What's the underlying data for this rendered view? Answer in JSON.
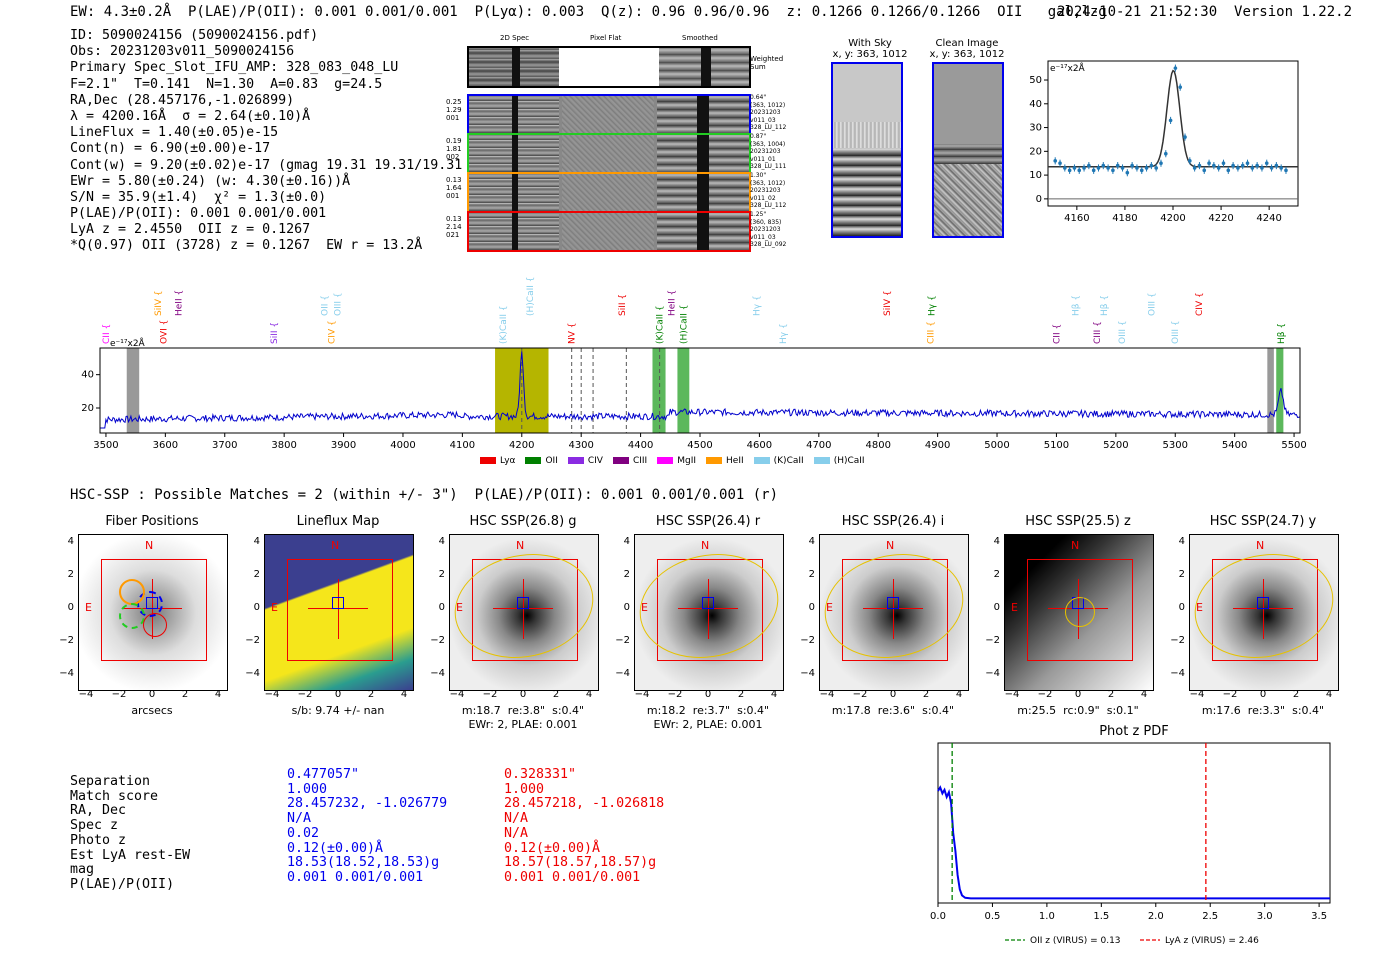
{
  "header": {
    "left": "EW: 4.3±0.2Å  P(LAE)/P(OII): 0.001 0.001/0.001  P(Lyα): 0.003  Q(z): 0.96 0.96/0.96  z: 0.1266 0.1266/0.1266  OII   gal,lzg",
    "timestamp": "2024-10-21 21:52:30",
    "version": "Version 1.22.2"
  },
  "info": [
    "ID: 5090024156 (5090024156.pdf)",
    "Obs: 20231203v011_5090024156",
    "Primary Spec_Slot_IFU_AMP: 328_083_048_LU",
    "F=2.1\"  T=0.141  N=1.30  A=0.83  g=24.5",
    "RA,Dec (28.457176,-1.026899)",
    "λ = 4200.16Å  σ = 2.64(±0.10)Å",
    "LineFlux = 1.40(±0.05)e-15",
    "Cont(n) = 6.90(±0.00)e-17",
    "Cont(w) = 9.20(±0.02)e-17 (gmag 19.31 19.31/19.31 *)",
    "EWr = 5.80(±0.24) (w: 4.30(±0.16))Å",
    "S/N = 35.9(±1.4)  χ² = 1.3(±0.0)",
    "P(LAE)/P(OII): 0.001 0.001/0.001",
    "LyA z = 2.4550  OII z = 0.1267",
    "*Q(0.97) OII (3728) z = 0.1267  EW r = 13.2Å"
  ],
  "cutouts": {
    "col_titles": [
      "2D Spec",
      "Pixel Flat",
      "Smoothed"
    ],
    "weighted_sum": "Weighted Sum",
    "rows": [
      {
        "left": [
          "0.25",
          "1.29",
          "001"
        ],
        "right": [
          "0.64\"",
          "(363, 1012)",
          "20231203",
          "v011_03",
          "328_LU_112"
        ],
        "color": "#0000ee"
      },
      {
        "left": [
          "0.19",
          "1.81",
          "002"
        ],
        "right": [
          "0.87\"",
          "(363, 1004)",
          "20231203",
          "v011_01",
          "328_LU_111"
        ],
        "color": "#22cc22"
      },
      {
        "left": [
          "0.13",
          "1.64",
          "001"
        ],
        "right": [
          "1.30\"",
          "(363, 1012)",
          "20231203",
          "v011_02",
          "328_LU_112"
        ],
        "color": "#ff9900"
      },
      {
        "left": [
          "0.13",
          "2.14",
          "021"
        ],
        "right": [
          "1.25\"",
          "(360, 835)",
          "20231203",
          "v011_03",
          "328_LU_092"
        ],
        "color": "#ee0000"
      }
    ]
  },
  "sky": {
    "with_sky": "With Sky",
    "with_sky_xy": "x, y: 363, 1012",
    "clean": "Clean Image",
    "clean_xy": "x, y: 363, 1012"
  },
  "zoom_chart": {
    "type": "line",
    "ylabel": "e⁻¹⁷x2Å",
    "xticks": [
      "4160",
      "4180",
      "4200",
      "4220",
      "4240"
    ],
    "yticks": [
      "0",
      "10",
      "20",
      "30",
      "40",
      "50"
    ],
    "xlim": [
      4148,
      4252
    ],
    "ylim": [
      -3,
      58
    ],
    "model_baseline": 13.5,
    "model_peak": 54,
    "center": 4200.16,
    "sigma": 2.64,
    "points_x": [
      4151,
      4153,
      4155,
      4157,
      4159,
      4161,
      4163,
      4165,
      4167,
      4169,
      4171,
      4173,
      4175,
      4177,
      4179,
      4181,
      4183,
      4185,
      4187,
      4189,
      4191,
      4193,
      4195,
      4197,
      4199,
      4201,
      4203,
      4205,
      4207,
      4209,
      4211,
      4213,
      4215,
      4217,
      4219,
      4221,
      4223,
      4225,
      4227,
      4229,
      4231,
      4233,
      4235,
      4237,
      4239,
      4241,
      4243,
      4245,
      4247
    ],
    "points_y": [
      16,
      15,
      13,
      12,
      13,
      12,
      13,
      14,
      12,
      13,
      14,
      13,
      12,
      14,
      13,
      11,
      14,
      13,
      12,
      13,
      14,
      13,
      15,
      19,
      33,
      55,
      47,
      26,
      16,
      13,
      14,
      12,
      15,
      14,
      13,
      15,
      12,
      14,
      13,
      14,
      15,
      13,
      14,
      13,
      15,
      13,
      14,
      13,
      12
    ]
  },
  "spectrum": {
    "ylabel": "e⁻¹⁷x2Å",
    "xticks": [
      "3500",
      "3600",
      "3700",
      "3800",
      "3900",
      "4000",
      "4100",
      "4200",
      "4300",
      "4400",
      "4500",
      "4600",
      "4700",
      "4800",
      "4900",
      "5000",
      "5100",
      "5200",
      "5300",
      "5400",
      "5500"
    ],
    "yticks": [
      "20",
      "40"
    ],
    "xlim": [
      3490,
      5510
    ],
    "ylim": [
      5,
      56
    ],
    "lines": [
      {
        "label": "CII",
        "x": 3500,
        "color": "#ff00ff"
      },
      {
        "label": "SiIV",
        "x": 3588,
        "color": "#ff9900"
      },
      {
        "label": "OVI",
        "x": 3597,
        "color": "#ee0000"
      },
      {
        "label": "HeII",
        "x": 3622,
        "color": "#800080"
      },
      {
        "label": "SiII",
        "x": 3783,
        "color": "#8a2be2"
      },
      {
        "label": "OII",
        "x": 3868,
        "color": "#87ceeb"
      },
      {
        "label": "CIV",
        "x": 3880,
        "color": "#ff9900"
      },
      {
        "label": "OIII",
        "x": 3890,
        "color": "#87ceeb"
      },
      {
        "label": "(K)CaII",
        "x": 4168,
        "color": "#87ceeb"
      },
      {
        "label": "(H)CaII",
        "x": 4214,
        "color": "#87ceeb"
      },
      {
        "label": "NV",
        "x": 4284,
        "color": "#ee0000"
      },
      {
        "label": "SiII",
        "x": 4369,
        "color": "#ee0000"
      },
      {
        "label": "(K)CaII",
        "x": 4432,
        "color": "#008000"
      },
      {
        "label": "HeII",
        "x": 4452,
        "color": "#800080"
      },
      {
        "label": "(H)CaII",
        "x": 4472,
        "color": "#008000"
      },
      {
        "label": "Hγ",
        "x": 4595,
        "color": "#87ceeb"
      },
      {
        "label": "Hγ",
        "x": 4640,
        "color": "#87ceeb"
      },
      {
        "label": "SiIV",
        "x": 4815,
        "color": "#ee0000"
      },
      {
        "label": "CIII",
        "x": 4888,
        "color": "#ff9900"
      },
      {
        "label": "Hγ",
        "x": 4890,
        "color": "#008000"
      },
      {
        "label": "CII",
        "x": 5100,
        "color": "#800080"
      },
      {
        "label": "Hβ",
        "x": 5132,
        "color": "#87ceeb"
      },
      {
        "label": "CIII",
        "x": 5168,
        "color": "#800080"
      },
      {
        "label": "Hβ",
        "x": 5180,
        "color": "#87ceeb"
      },
      {
        "label": "OIII",
        "x": 5210,
        "color": "#87ceeb"
      },
      {
        "label": "OIII",
        "x": 5260,
        "color": "#87ceeb"
      },
      {
        "label": "OIII",
        "x": 5300,
        "color": "#87ceeb"
      },
      {
        "label": "CIV",
        "x": 5340,
        "color": "#ee0000"
      },
      {
        "label": "Hβ",
        "x": 5478,
        "color": "#008000"
      }
    ],
    "legend": [
      {
        "label": "Lyα",
        "color": "#ee0000"
      },
      {
        "label": "OII",
        "color": "#008000"
      },
      {
        "label": "CIV",
        "color": "#8a2be2"
      },
      {
        "label": "CIII",
        "color": "#800080"
      },
      {
        "label": "MgII",
        "color": "#ff00ff"
      },
      {
        "label": "HeII",
        "color": "#ff9900"
      },
      {
        "label": "(K)CaII",
        "color": "#87ceeb"
      },
      {
        "label": "(H)CaII",
        "color": "#87ceeb"
      }
    ]
  },
  "hsc": {
    "summary": "HSC-SSP : Possible Matches = 2 (within +/- 3\")  P(LAE)/P(OII): 0.001 0.001/0.001 (r)",
    "panels": [
      {
        "title": "Fiber Positions",
        "sub1": "arcsecs",
        "sub2": ""
      },
      {
        "title": "Lineflux Map",
        "sub1": "s/b: 9.74 +/- nan",
        "sub2": ""
      },
      {
        "title": "HSC SSP(26.8) g",
        "sub1": "m:18.7  re:3.8\"  s:0.4\"",
        "sub2": "EWr: 2, PLAE: 0.001"
      },
      {
        "title": "HSC SSP(26.4) r",
        "sub1": "m:18.2  re:3.7\"  s:0.4\"",
        "sub2": "EWr: 2, PLAE: 0.001"
      },
      {
        "title": "HSC SSP(26.4) i",
        "sub1": "m:17.8  re:3.6\"  s:0.4\"",
        "sub2": ""
      },
      {
        "title": "HSC SSP(25.5) z",
        "sub1": "m:25.5  rc:0.9\"  s:0.1\"",
        "sub2": ""
      },
      {
        "title": "HSC SSP(24.7) y",
        "sub1": "m:17.6  re:3.3\"  s:0.4\"",
        "sub2": ""
      }
    ],
    "axis_ticks": [
      "−4",
      "−2",
      "0",
      "2",
      "4"
    ],
    "n_label": "N",
    "e_label": "E"
  },
  "match_table": {
    "labels": [
      "Separation",
      "Match score",
      "RA, Dec",
      "Spec z",
      "Photo z",
      "Est LyA rest-EW",
      "mag",
      "P(LAE)/P(OII)"
    ],
    "blue": [
      "0.477057\"",
      "1.000",
      "28.457232, -1.026779",
      "N/A",
      "0.02",
      "0.12(±0.00)Å",
      "18.53(18.52,18.53)g",
      "0.001 0.001/0.001"
    ],
    "red": [
      "0.328331\"",
      "1.000",
      "28.457218, -1.026818",
      "N/A",
      "N/A",
      "0.12(±0.00)Å",
      "18.57(18.57,18.57)g",
      "0.001 0.001/0.001"
    ]
  },
  "photz": {
    "type": "line",
    "title": "Phot z PDF",
    "xticks": [
      "0.0",
      "0.5",
      "1.0",
      "1.5",
      "2.0",
      "2.5",
      "3.0",
      "3.5"
    ],
    "xlim": [
      0,
      3.6
    ],
    "oii_z": 0.13,
    "lya_z": 2.46,
    "legend_oii": "OII z (VIRUS) = 0.13",
    "legend_lya": "LyA z (VIRUS) = 2.46",
    "x": [
      0.0,
      0.02,
      0.04,
      0.06,
      0.08,
      0.1,
      0.12,
      0.14,
      0.16,
      0.18,
      0.2,
      0.22,
      0.25,
      0.3,
      0.5,
      1.0,
      2.0,
      3.0,
      3.6
    ],
    "y": [
      0.9,
      0.93,
      0.88,
      0.91,
      0.85,
      0.89,
      0.8,
      0.55,
      0.4,
      0.2,
      0.08,
      0.03,
      0.01,
      0.005,
      0.005,
      0.005,
      0.005,
      0.005,
      0.005
    ]
  }
}
